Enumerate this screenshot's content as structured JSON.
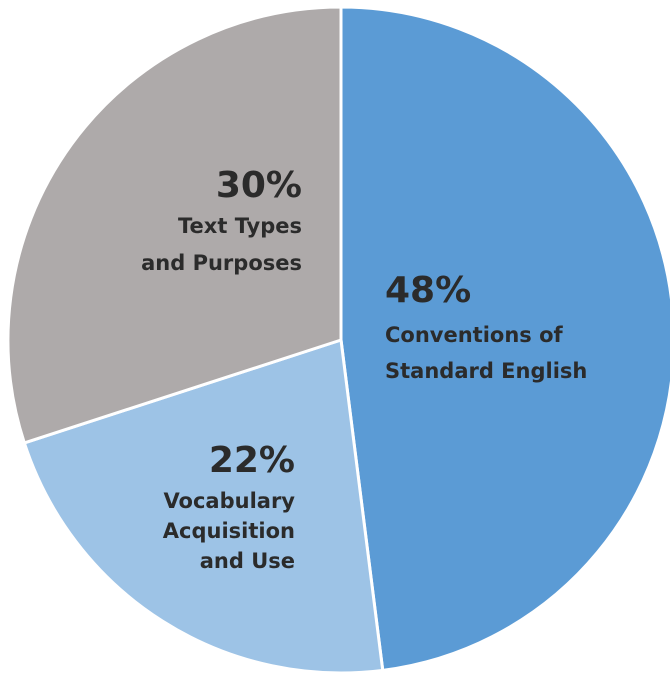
{
  "chart_data": {
    "type": "pie",
    "title": "",
    "start_angle_deg": 0,
    "direction": "clockwise",
    "slices": [
      {
        "label_lines": [
          "Conventions of",
          "Standard English"
        ],
        "value": 48,
        "value_label": "48%",
        "color": "#5b9bd5"
      },
      {
        "label_lines": [
          "Vocabulary",
          "Acquisition",
          "and Use"
        ],
        "value": 22,
        "value_label": "22%",
        "color": "#9dc3e6"
      },
      {
        "label_lines": [
          "Text Types",
          "and Purposes"
        ],
        "value": 30,
        "value_label": "30%",
        "color": "#aeaaaa"
      }
    ]
  }
}
